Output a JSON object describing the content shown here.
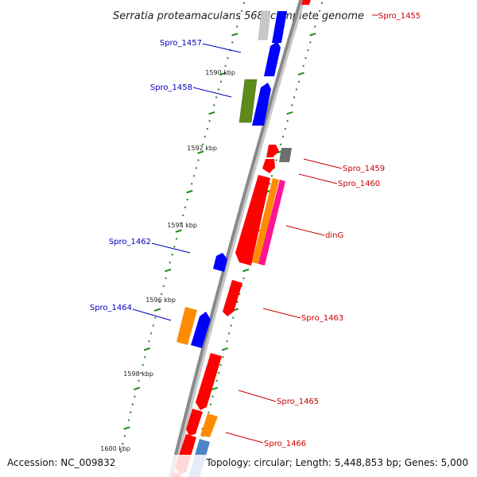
{
  "title": "Serratia proteamaculans 568, complete genome",
  "footer": {
    "accession": "Accession: NC_009832",
    "topology": "Topology: circular; Length: 5,448,853 bp; Genes: 5,000"
  },
  "kbp_labels": [
    "1590 kbp",
    "1592 kbp",
    "1594 kbp",
    "1596 kbp",
    "1598 kbp",
    "1600 kbp"
  ],
  "gene_labels": [
    {
      "id": "spro-1455",
      "text": "Spro_1455",
      "color": "#cc0000"
    },
    {
      "id": "spro-1457",
      "text": "Spro_1457",
      "color": "#0000bb"
    },
    {
      "id": "spro-1458",
      "text": "Spro_1458",
      "color": "#0000bb"
    },
    {
      "id": "spro-1459",
      "text": "Spro_1459",
      "color": "#cc0000"
    },
    {
      "id": "spro-1460",
      "text": "Spro_1460",
      "color": "#cc0000"
    },
    {
      "id": "ding",
      "text": "dinG",
      "color": "#cc0000"
    },
    {
      "id": "spro-1462",
      "text": "Spro_1462",
      "color": "#0000bb"
    },
    {
      "id": "spro-1463",
      "text": "Spro_1463",
      "color": "#cc0000"
    },
    {
      "id": "spro-1464",
      "text": "Spro_1464",
      "color": "#0000bb"
    },
    {
      "id": "spro-1465",
      "text": "Spro_1465",
      "color": "#cc0000"
    },
    {
      "id": "spro-1466",
      "text": "Spro_1466",
      "color": "#cc0000"
    }
  ],
  "colors": {
    "backbone": "#8a8a8a",
    "tick": "#1a8a1a",
    "red": "#ff0000",
    "blue": "#0000ff",
    "orange": "#ff8c00",
    "olive": "#5f8a1e",
    "magenta": "#ff1493",
    "grey": "#6e6e6e",
    "lightgrey": "#c8c8c8",
    "steelblue": "#4a86c8"
  }
}
